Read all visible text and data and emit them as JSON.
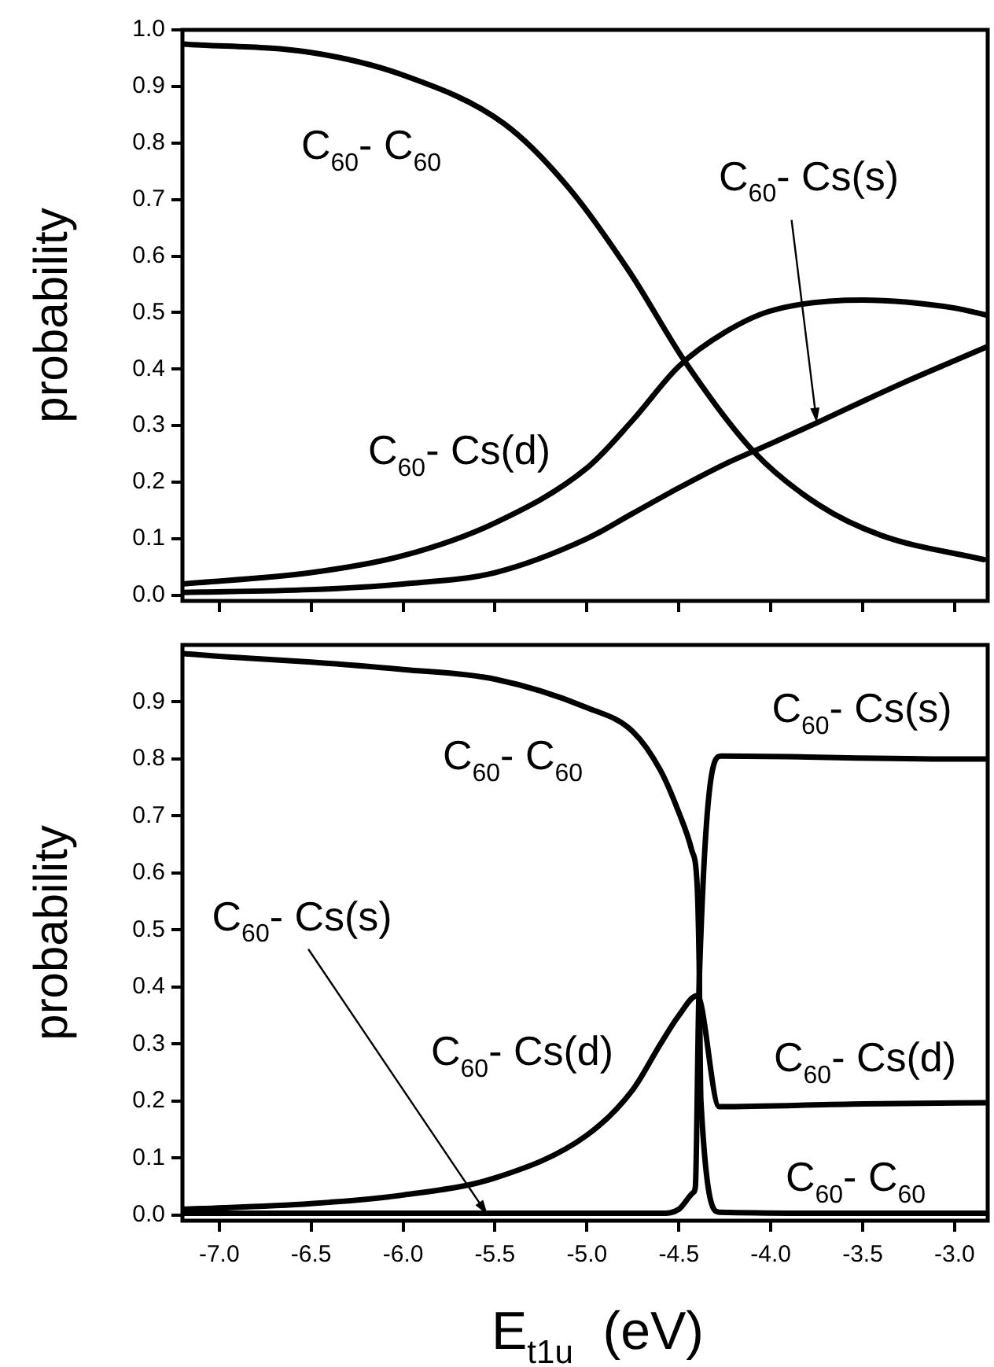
{
  "chart_data": [
    {
      "type": "line",
      "ylabel": "probability",
      "tick_labels": "y",
      "grid": false,
      "marker": "none",
      "line_style": "solid",
      "xlim": [
        -7.2,
        -2.82
      ],
      "xticks": [
        {
          "value": -7,
          "label": null
        },
        {
          "value": -6.5,
          "label": null
        },
        {
          "value": -6,
          "label": null
        },
        {
          "value": -5.5,
          "label": null
        },
        {
          "value": -5,
          "label": null
        },
        {
          "value": -4.5,
          "label": null
        },
        {
          "value": -4,
          "label": null
        },
        {
          "value": -3.5,
          "label": null
        },
        {
          "value": -3,
          "label": null
        }
      ],
      "ylim": [
        -0.01,
        1.0
      ],
      "yticks": [
        {
          "value": 0,
          "label": "0.0"
        },
        {
          "value": 0.1,
          "label": "0.1"
        },
        {
          "value": 0.2,
          "label": "0.2"
        },
        {
          "value": 0.3,
          "label": "0.3"
        },
        {
          "value": 0.4,
          "label": "0.4"
        },
        {
          "value": 0.5,
          "label": "0.5"
        },
        {
          "value": 0.6,
          "label": "0.6"
        },
        {
          "value": 0.7,
          "label": "0.7"
        },
        {
          "value": 0.8,
          "label": "0.8"
        },
        {
          "value": 0.9,
          "label": "0.9"
        },
        {
          "value": 1,
          "label": "1.0"
        }
      ],
      "series": [
        {
          "color": "#000000",
          "x": [
            -7.2,
            -6.5,
            -6.0,
            -5.45,
            -5.11,
            -4.77,
            -4.46,
            -4.09,
            -3.74,
            -3.4,
            -2.84
          ],
          "values": [
            0.975,
            0.96,
            0.92,
            0.834,
            0.725,
            0.573,
            0.41,
            0.253,
            0.16,
            0.106,
            0.063
          ]
        },
        {
          "color": "#000000",
          "x": [
            -7.2,
            -6.5,
            -6.0,
            -5.5,
            -5.0,
            -4.75,
            -4.5,
            -4.25,
            -4.0,
            -3.5,
            -3.0,
            -2.82
          ],
          "values": [
            0.02,
            0.04,
            0.07,
            0.128,
            0.225,
            0.31,
            0.405,
            0.465,
            0.503,
            0.522,
            0.508,
            0.495
          ]
        },
        {
          "color": "#000000",
          "x": [
            -7.2,
            -6.5,
            -6.0,
            -5.5,
            -5.0,
            -4.75,
            -4.5,
            -4.25,
            -4.0,
            -3.75,
            -3.5,
            -3.25,
            -3.0,
            -2.82
          ],
          "values": [
            0.005,
            0.01,
            0.02,
            0.04,
            0.1,
            0.145,
            0.19,
            0.232,
            0.268,
            0.305,
            0.343,
            0.38,
            0.415,
            0.44
          ]
        }
      ],
      "annotations": [
        "C$_{60}$- C$_{60}$",
        {
          "text": "C$_{60}$- Cs(s)",
          "x": -3.75,
          "y": 0.305
        },
        "C$_{60}$- Cs(d)"
      ]
    },
    {
      "type": "line",
      "xlabel": "E$_{t1u}$  (eV)",
      "ylabel": "probability",
      "grid": false,
      "marker": "none",
      "line_style": "solid",
      "xlim": [
        -7.2,
        -2.82
      ],
      "xticks": [
        {
          "value": -7,
          "label": "-7.0"
        },
        {
          "value": -6.5,
          "label": "-6.5"
        },
        {
          "value": -6,
          "label": "-6.0"
        },
        {
          "value": -5.5,
          "label": "-5.5"
        },
        {
          "value": -5,
          "label": "-5.0"
        },
        {
          "value": -4.5,
          "label": "-4.5"
        },
        {
          "value": -4,
          "label": "-4.0"
        },
        {
          "value": -3.5,
          "label": "-3.5"
        },
        {
          "value": -3,
          "label": "-3.0"
        }
      ],
      "ylim": [
        -0.01,
        1.0
      ],
      "yticks": [
        {
          "value": 0,
          "label": "0.0"
        },
        {
          "value": 0.1,
          "label": "0.1"
        },
        {
          "value": 0.2,
          "label": "0.2"
        },
        {
          "value": 0.3,
          "label": "0.3"
        },
        {
          "value": 0.4,
          "label": "0.4"
        },
        {
          "value": 0.5,
          "label": "0.5"
        },
        {
          "value": 0.6,
          "label": "0.6"
        },
        {
          "value": 0.7,
          "label": "0.7"
        },
        {
          "value": 0.8,
          "label": "0.8"
        },
        {
          "value": 0.9,
          "label": "0.9"
        }
      ],
      "series": [
        {
          "color": "#000000",
          "x": [
            -7.2,
            -7.0,
            -6.5,
            -6.0,
            -5.5,
            -5.0,
            -4.75,
            -4.6,
            -4.5,
            -4.43,
            -4.4,
            -4.39,
            -4.38,
            -4.28,
            -3.5,
            -2.82
          ],
          "values": [
            0.985,
            0.98,
            0.97,
            0.957,
            0.94,
            0.89,
            0.848,
            0.78,
            0.706,
            0.64,
            0.576,
            0.45,
            0.2,
            0.005,
            0.003,
            0.003
          ]
        },
        {
          "color": "#000000",
          "x": [
            -7.2,
            -6.5,
            -6.0,
            -5.5,
            -5.0,
            -4.75,
            -4.6,
            -4.5,
            -4.4,
            -4.28,
            -3.5,
            -2.82
          ],
          "values": [
            0.01,
            0.02,
            0.035,
            0.065,
            0.14,
            0.22,
            0.3,
            0.35,
            0.385,
            0.19,
            0.195,
            0.197
          ]
        },
        {
          "color": "#000000",
          "x": [
            -7.2,
            -6.0,
            -4.6,
            -4.5,
            -4.42,
            -4.41,
            -4.39,
            -4.27,
            -3.0,
            -2.82
          ],
          "values": [
            0.003,
            0.003,
            0.003,
            0.01,
            0.04,
            0.05,
            0.4,
            0.805,
            0.8,
            0.8
          ]
        }
      ],
      "annotations": [
        "C$_{60}$- C$_{60}$",
        "C$_{60}$- Cs(s)",
        {
          "text": "C$_{60}$- Cs(s)",
          "x": -5.54,
          "y": 0.0
        },
        "C$_{60}$- Cs(d)",
        "C$_{60}$- Cs(d)",
        "C$_{60}$- C$_{60}$"
      ]
    }
  ]
}
